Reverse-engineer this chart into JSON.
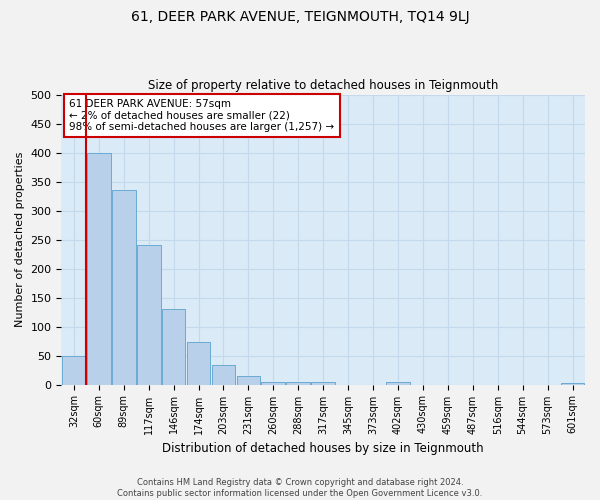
{
  "title": "61, DEER PARK AVENUE, TEIGNMOUTH, TQ14 9LJ",
  "subtitle": "Size of property relative to detached houses in Teignmouth",
  "xlabel": "Distribution of detached houses by size in Teignmouth",
  "ylabel": "Number of detached properties",
  "categories": [
    "32sqm",
    "60sqm",
    "89sqm",
    "117sqm",
    "146sqm",
    "174sqm",
    "203sqm",
    "231sqm",
    "260sqm",
    "288sqm",
    "317sqm",
    "345sqm",
    "373sqm",
    "402sqm",
    "430sqm",
    "459sqm",
    "487sqm",
    "516sqm",
    "544sqm",
    "573sqm",
    "601sqm"
  ],
  "values": [
    50,
    400,
    335,
    240,
    130,
    73,
    33,
    15,
    5,
    5,
    5,
    0,
    0,
    5,
    0,
    0,
    0,
    0,
    0,
    0,
    2
  ],
  "bar_color": "#b8d0ea",
  "bar_edge_color": "#6aaad4",
  "annotation_text": "61 DEER PARK AVENUE: 57sqm\n← 2% of detached houses are smaller (22)\n98% of semi-detached houses are larger (1,257) →",
  "annotation_box_color": "#ffffff",
  "annotation_box_edge_color": "#cc0000",
  "vline_color": "#cc0000",
  "ylim": [
    0,
    500
  ],
  "yticks": [
    0,
    50,
    100,
    150,
    200,
    250,
    300,
    350,
    400,
    450,
    500
  ],
  "grid_color": "#c5d9ec",
  "bg_color": "#daeaf7",
  "fig_bg_color": "#f2f2f2",
  "footer1": "Contains HM Land Registry data © Crown copyright and database right 2024.",
  "footer2": "Contains public sector information licensed under the Open Government Licence v3.0."
}
